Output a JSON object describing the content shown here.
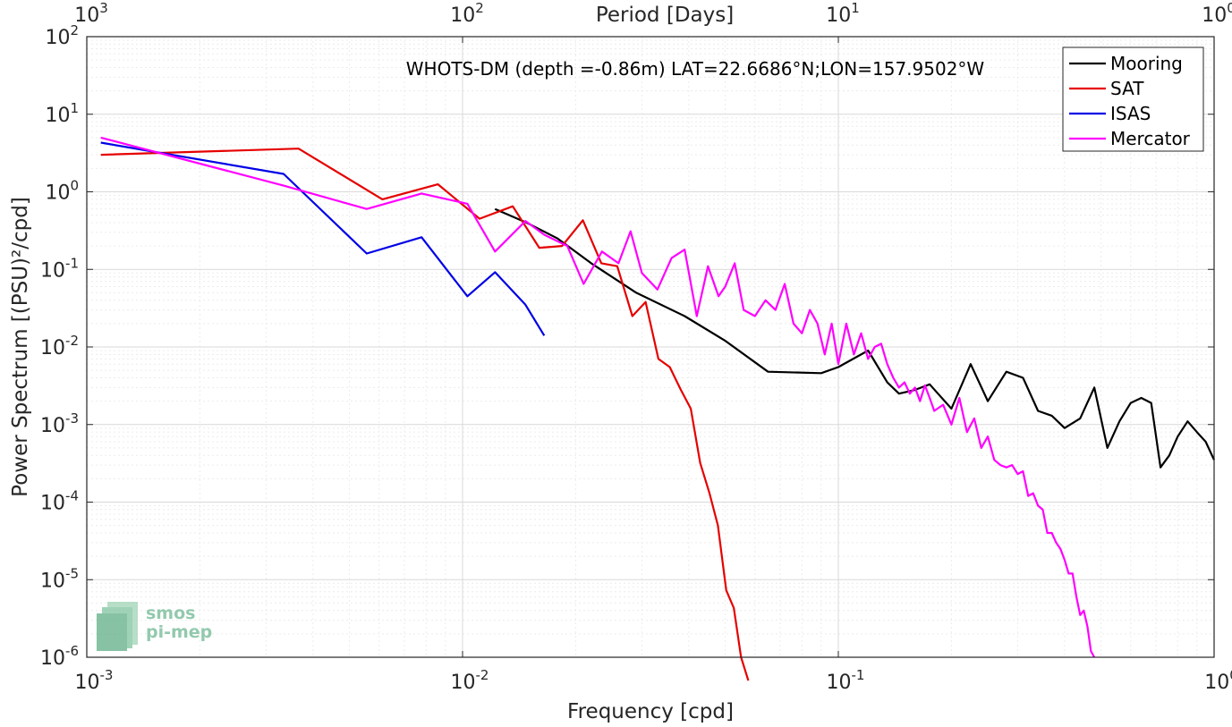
{
  "chart_data": {
    "type": "line",
    "title": "WHOTS-DM (depth =-0.86m) LAT=22.6686°N;LON=157.9502°W",
    "xlabel": "Frequency [cpd]",
    "ylabel": "Power Spectrum [(PSU)²/cpd]",
    "top_axis_label": "Period [Days]",
    "xscale": "log",
    "yscale": "log",
    "xlim": [
      0.001,
      1
    ],
    "ylim": [
      1e-06,
      100
    ],
    "x_ticks": [
      {
        "value": 0.001,
        "base": "10",
        "exp": "-3"
      },
      {
        "value": 0.01,
        "base": "10",
        "exp": "-2"
      },
      {
        "value": 0.1,
        "base": "10",
        "exp": "-1"
      },
      {
        "value": 1,
        "base": "10",
        "exp": "0"
      }
    ],
    "y_ticks": [
      {
        "value": 1e-06,
        "base": "10",
        "exp": "-6"
      },
      {
        "value": 1e-05,
        "base": "10",
        "exp": "-5"
      },
      {
        "value": 0.0001,
        "base": "10",
        "exp": "-4"
      },
      {
        "value": 0.001,
        "base": "10",
        "exp": "-3"
      },
      {
        "value": 0.01,
        "base": "10",
        "exp": "-2"
      },
      {
        "value": 0.1,
        "base": "10",
        "exp": "-1"
      },
      {
        "value": 1,
        "base": "10",
        "exp": "0"
      },
      {
        "value": 10,
        "base": "10",
        "exp": "1"
      },
      {
        "value": 100,
        "base": "10",
        "exp": "2"
      }
    ],
    "top_ticks": [
      {
        "freq": 0.001,
        "base": "10",
        "exp": "3"
      },
      {
        "freq": 0.01,
        "base": "10",
        "exp": "2"
      },
      {
        "freq": 0.1,
        "base": "10",
        "exp": "1"
      },
      {
        "freq": 1,
        "base": "10",
        "exp": "0"
      }
    ],
    "grid": true,
    "legend_position": "top-right",
    "series": [
      {
        "name": "Mooring",
        "color": "#000000",
        "x": [
          0.0122,
          0.0148,
          0.0179,
          0.022,
          0.029,
          0.039,
          0.05,
          0.065,
          0.09,
          0.1,
          0.12,
          0.135,
          0.145,
          0.16,
          0.175,
          0.2,
          0.225,
          0.25,
          0.28,
          0.31,
          0.34,
          0.37,
          0.4,
          0.44,
          0.48,
          0.52,
          0.56,
          0.6,
          0.64,
          0.68,
          0.72,
          0.76,
          0.8,
          0.85,
          0.9,
          0.95,
          1.0
        ],
        "y": [
          0.6,
          0.4,
          0.25,
          0.12,
          0.05,
          0.025,
          0.012,
          0.0048,
          0.0046,
          0.0055,
          0.009,
          0.0035,
          0.0025,
          0.0028,
          0.0033,
          0.0016,
          0.006,
          0.002,
          0.0048,
          0.004,
          0.0015,
          0.0013,
          0.0009,
          0.0012,
          0.003,
          0.0005,
          0.0011,
          0.0019,
          0.0022,
          0.0019,
          0.00028,
          0.0004,
          0.0007,
          0.0011,
          0.0008,
          0.0006,
          0.00035
        ]
      },
      {
        "name": "SAT",
        "color": "#e60000",
        "x": [
          0.00109,
          0.00366,
          0.00612,
          0.0086,
          0.0111,
          0.0136,
          0.016,
          0.0184,
          0.0209,
          0.0234,
          0.0258,
          0.0283,
          0.0307,
          0.0332,
          0.0356,
          0.0381,
          0.0405,
          0.0429,
          0.0454,
          0.0478,
          0.0503,
          0.0527,
          0.0551,
          0.0576
        ],
        "y": [
          3.0,
          3.6,
          0.8,
          1.25,
          0.45,
          0.65,
          0.19,
          0.2,
          0.43,
          0.12,
          0.11,
          0.025,
          0.038,
          0.007,
          0.0055,
          0.0028,
          0.0016,
          0.00032,
          0.00013,
          5e-05,
          7.3e-06,
          4.3e-06,
          1e-06,
          5e-07
        ]
      },
      {
        "name": "ISAS",
        "color": "#0000e6",
        "x": [
          0.00109,
          0.00334,
          0.00556,
          0.00778,
          0.0103,
          0.0122,
          0.0147,
          0.0165
        ],
        "y": [
          4.3,
          1.7,
          0.16,
          0.26,
          0.045,
          0.092,
          0.035,
          0.014
        ]
      },
      {
        "name": "Mercator",
        "color": "#ff00ff",
        "x": [
          0.00109,
          0.00334,
          0.00556,
          0.00778,
          0.0103,
          0.0122,
          0.0147,
          0.0165,
          0.019,
          0.021,
          0.0235,
          0.026,
          0.028,
          0.03,
          0.033,
          0.036,
          0.039,
          0.042,
          0.045,
          0.048,
          0.05,
          0.053,
          0.056,
          0.06,
          0.064,
          0.068,
          0.072,
          0.076,
          0.08,
          0.084,
          0.088,
          0.092,
          0.096,
          0.1,
          0.105,
          0.11,
          0.115,
          0.12,
          0.125,
          0.13,
          0.135,
          0.14,
          0.145,
          0.15,
          0.155,
          0.16,
          0.165,
          0.17,
          0.175,
          0.18,
          0.19,
          0.2,
          0.21,
          0.22,
          0.23,
          0.24,
          0.25,
          0.26,
          0.27,
          0.28,
          0.29,
          0.3,
          0.31,
          0.32,
          0.33,
          0.34,
          0.35,
          0.36,
          0.37,
          0.38,
          0.39,
          0.4,
          0.41,
          0.42,
          0.43,
          0.44,
          0.45,
          0.46,
          0.47,
          0.48
        ],
        "y": [
          5.0,
          1.2,
          0.6,
          0.95,
          0.7,
          0.17,
          0.42,
          0.28,
          0.2,
          0.065,
          0.17,
          0.12,
          0.31,
          0.09,
          0.055,
          0.14,
          0.18,
          0.025,
          0.11,
          0.045,
          0.06,
          0.12,
          0.03,
          0.025,
          0.04,
          0.03,
          0.065,
          0.02,
          0.015,
          0.03,
          0.02,
          0.008,
          0.02,
          0.006,
          0.02,
          0.008,
          0.015,
          0.007,
          0.01,
          0.011,
          0.006,
          0.004,
          0.003,
          0.0035,
          0.0025,
          0.003,
          0.002,
          0.0032,
          0.0022,
          0.0015,
          0.0018,
          0.001,
          0.0022,
          0.0008,
          0.0012,
          0.0005,
          0.0007,
          0.00035,
          0.0003,
          0.00028,
          0.0003,
          0.00023,
          0.00025,
          0.00012,
          0.00013,
          9e-05,
          8e-05,
          4e-05,
          4e-05,
          3e-05,
          2.5e-05,
          1.8e-05,
          1.2e-05,
          1.2e-05,
          6e-06,
          3.5e-06,
          4e-06,
          2.5e-06,
          1.2e-06,
          1e-06
        ]
      }
    ],
    "legend": [
      "Mooring",
      "SAT",
      "ISAS",
      "Mercator"
    ]
  },
  "logo": {
    "line1": "smos",
    "line2": "pi-mep"
  }
}
